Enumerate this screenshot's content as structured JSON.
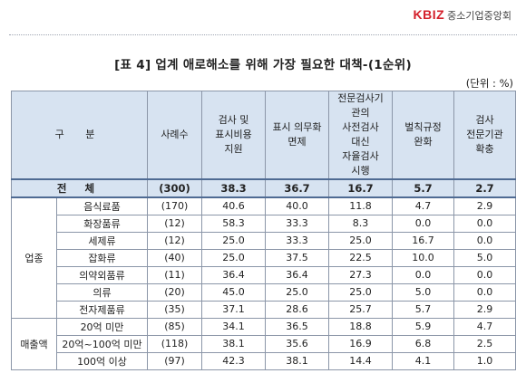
{
  "header": {
    "brand": "KBIZ",
    "org": "중소기업중앙회"
  },
  "title": "[표 4] 업계 애로해소를 위해 가장 필요한 대책-(1순위)",
  "unit": "(단위 : %)",
  "columns": {
    "group": "구 분",
    "count": "사례수",
    "c1": [
      "검사 및",
      "표시비용",
      "지원"
    ],
    "c2": [
      "표시 의무화",
      "면제"
    ],
    "c3": [
      "전문검사기",
      "관의",
      "사전검사",
      "대신",
      "자율검사",
      "시행"
    ],
    "c4": [
      "벌칙규정",
      "완화"
    ],
    "c5": [
      "검사",
      "전문기관",
      "확충"
    ]
  },
  "total": {
    "label": "전 체",
    "count": "(300)",
    "values": [
      "38.3",
      "36.7",
      "16.7",
      "5.7",
      "2.7"
    ]
  },
  "groups": [
    {
      "label": "업종",
      "rows": [
        {
          "name": "음식료품",
          "count": "(170)",
          "values": [
            "40.6",
            "40.0",
            "11.8",
            "4.7",
            "2.9"
          ]
        },
        {
          "name": "화장품류",
          "count": "(12)",
          "values": [
            "58.3",
            "33.3",
            "8.3",
            "0.0",
            "0.0"
          ]
        },
        {
          "name": "세제류",
          "count": "(12)",
          "values": [
            "25.0",
            "33.3",
            "25.0",
            "16.7",
            "0.0"
          ]
        },
        {
          "name": "잡화류",
          "count": "(40)",
          "values": [
            "25.0",
            "37.5",
            "22.5",
            "10.0",
            "5.0"
          ]
        },
        {
          "name": "의약외품류",
          "count": "(11)",
          "values": [
            "36.4",
            "36.4",
            "27.3",
            "0.0",
            "0.0"
          ]
        },
        {
          "name": "의류",
          "count": "(20)",
          "values": [
            "45.0",
            "25.0",
            "25.0",
            "5.0",
            "0.0"
          ]
        },
        {
          "name": "전자제품류",
          "count": "(35)",
          "values": [
            "37.1",
            "28.6",
            "25.7",
            "5.7",
            "2.9"
          ]
        }
      ]
    },
    {
      "label": "매출액",
      "rows": [
        {
          "name": "20억 미만",
          "count": "(85)",
          "values": [
            "34.1",
            "36.5",
            "18.8",
            "5.9",
            "4.7"
          ]
        },
        {
          "name": "20억~100억 미만",
          "count": "(118)",
          "values": [
            "38.1",
            "35.6",
            "16.9",
            "6.8",
            "2.5"
          ]
        },
        {
          "name": "100억 이상",
          "count": "(97)",
          "values": [
            "42.3",
            "38.1",
            "14.4",
            "4.1",
            "1.0"
          ]
        }
      ]
    }
  ]
}
